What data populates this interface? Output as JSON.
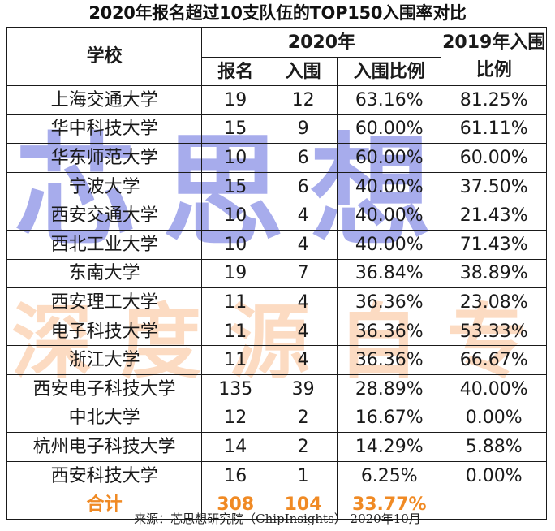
{
  "title": "2020年报名超过10支队伍的TOP150入围率对比",
  "header": {
    "school": "学校",
    "year2020": "2020年",
    "year2019": "2019年入围比例",
    "signup": "报名",
    "shortlist": "入围",
    "ratio": "入围比例"
  },
  "rows": [
    {
      "school": "上海交通大学",
      "signup": "19",
      "shortlist": "12",
      "ratio2020": "63.16%",
      "ratio2019": "81.25%"
    },
    {
      "school": "华中科技大学",
      "signup": "15",
      "shortlist": "9",
      "ratio2020": "60.00%",
      "ratio2019": "61.11%"
    },
    {
      "school": "华东师范大学",
      "signup": "10",
      "shortlist": "6",
      "ratio2020": "60.00%",
      "ratio2019": "60.00%"
    },
    {
      "school": "宁波大学",
      "signup": "15",
      "shortlist": "6",
      "ratio2020": "40.00%",
      "ratio2019": "37.50%"
    },
    {
      "school": "西安交通大学",
      "signup": "10",
      "shortlist": "4",
      "ratio2020": "40.00%",
      "ratio2019": "21.43%"
    },
    {
      "school": "西北工业大学",
      "signup": "10",
      "shortlist": "4",
      "ratio2020": "40.00%",
      "ratio2019": "71.43%"
    },
    {
      "school": "东南大学",
      "signup": "19",
      "shortlist": "7",
      "ratio2020": "36.84%",
      "ratio2019": "38.89%"
    },
    {
      "school": "西安理工大学",
      "signup": "11",
      "shortlist": "4",
      "ratio2020": "36.36%",
      "ratio2019": "23.08%"
    },
    {
      "school": "电子科技大学",
      "signup": "11",
      "shortlist": "4",
      "ratio2020": "36.36%",
      "ratio2019": "53.33%"
    },
    {
      "school": "浙江大学",
      "signup": "11",
      "shortlist": "4",
      "ratio2020": "36.36%",
      "ratio2019": "66.67%"
    },
    {
      "school": "西安电子科技大学",
      "signup": "135",
      "shortlist": "39",
      "ratio2020": "28.89%",
      "ratio2019": "40.00%"
    },
    {
      "school": "中北大学",
      "signup": "12",
      "shortlist": "2",
      "ratio2020": "16.67%",
      "ratio2019": "0.00%"
    },
    {
      "school": "杭州电子科技大学",
      "signup": "14",
      "shortlist": "2",
      "ratio2020": "14.29%",
      "ratio2019": "5.88%"
    },
    {
      "school": "西安科技大学",
      "signup": "16",
      "shortlist": "1",
      "ratio2020": "6.25%",
      "ratio2019": "0.00%"
    }
  ],
  "total": {
    "label": "合计",
    "signup": "308",
    "shortlist": "104",
    "ratio": "33.77%"
  },
  "source": "来源：芯思想研究院（ChipInsights）   2020年10月",
  "watermark": {
    "primary": "芯思想",
    "secondary": "深度源自专注"
  },
  "colors": {
    "total": "#f08a24",
    "watermark_blue": "#6870de",
    "watermark_orange": "#f8af78"
  }
}
